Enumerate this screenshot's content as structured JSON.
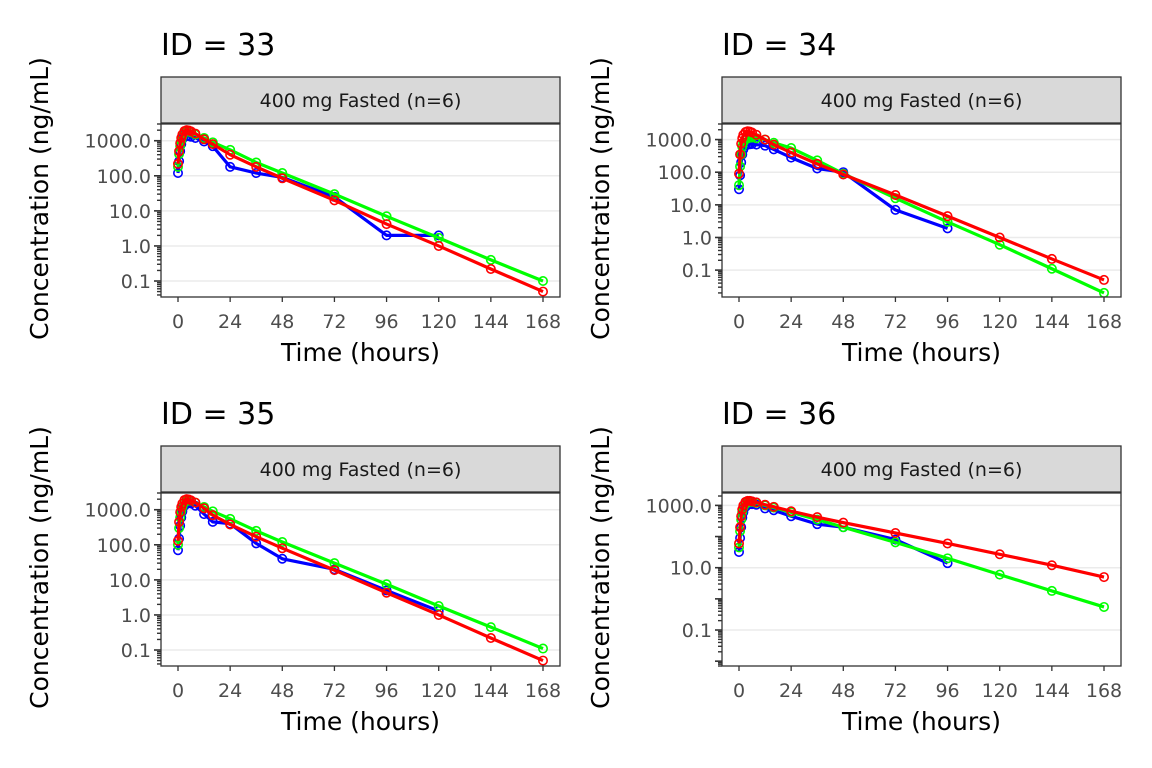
{
  "colors": {
    "obs": "#0000ff",
    "model_a": "#00ff00",
    "model_b": "#ff0000",
    "strip_fill": "#d9d9d9",
    "grid": "#ebebeb"
  },
  "chart_data": [
    {
      "type": "line",
      "title": "ID = 33",
      "strip": "400 mg Fasted (n=6)",
      "xlabel": "Time (hours)",
      "ylabel": "Concentration (ng/mL)",
      "xlim": [
        0,
        168
      ],
      "x_ticks": [
        0,
        24,
        48,
        72,
        96,
        120,
        144,
        168
      ],
      "y_scale": "log10",
      "ylim": [
        0.035,
        3000
      ],
      "y_ticks": [
        0.1,
        1,
        10,
        100,
        1000
      ],
      "y_tick_labels": [
        "0.1",
        "1.0",
        "10.0",
        "100.0",
        "1000.0"
      ],
      "grid": true,
      "series": [
        {
          "color_key": "obs",
          "x": [
            0,
            0.5,
            1,
            1.5,
            2,
            3,
            4,
            5,
            6,
            8,
            12,
            16,
            24,
            36,
            48,
            72,
            96,
            120
          ],
          "y": [
            120,
            260,
            500,
            800,
            1100,
            1500,
            1400,
            1350,
            1300,
            1200,
            950,
            700,
            180,
            120,
            90,
            25,
            2,
            2
          ]
        },
        {
          "color_key": "model_a",
          "x": [
            0,
            0.5,
            1,
            1.5,
            2,
            3,
            4,
            5,
            6,
            8,
            12,
            16,
            24,
            36,
            48,
            72,
            96,
            120,
            144,
            168
          ],
          "y": [
            180,
            420,
            700,
            1000,
            1300,
            1700,
            1900,
            1850,
            1750,
            1500,
            1200,
            900,
            550,
            240,
            120,
            30,
            7,
            1.7,
            0.4,
            0.1
          ]
        },
        {
          "color_key": "model_b",
          "x": [
            0,
            0.5,
            1,
            1.5,
            2,
            3,
            4,
            5,
            6,
            8,
            12,
            16,
            24,
            36,
            48,
            72,
            96,
            120,
            144,
            168
          ],
          "y": [
            220,
            500,
            850,
            1200,
            1500,
            1900,
            2000,
            1950,
            1850,
            1600,
            1100,
            800,
            400,
            180,
            85,
            20,
            4.2,
            1,
            0.22,
            0.05
          ]
        }
      ]
    },
    {
      "type": "line",
      "title": "ID = 34",
      "strip": "400 mg Fasted (n=6)",
      "xlabel": "Time (hours)",
      "ylabel": "Concentration (ng/mL)",
      "xlim": [
        0,
        168
      ],
      "x_ticks": [
        0,
        24,
        48,
        72,
        96,
        120,
        144,
        168
      ],
      "y_scale": "log10",
      "ylim": [
        0.015,
        3000
      ],
      "y_ticks": [
        0.1,
        1,
        10,
        100,
        1000
      ],
      "y_tick_labels": [
        "0.1",
        "1.0",
        "10.0",
        "100.0",
        "1000.0"
      ],
      "grid": true,
      "series": [
        {
          "color_key": "obs",
          "x": [
            0,
            0.5,
            1,
            1.5,
            2,
            3,
            4,
            5,
            6,
            8,
            12,
            16,
            24,
            36,
            48,
            72,
            96
          ],
          "y": [
            30,
            80,
            200,
            350,
            500,
            650,
            700,
            720,
            730,
            700,
            650,
            500,
            280,
            130,
            100,
            7,
            1.9
          ]
        },
        {
          "color_key": "model_a",
          "x": [
            0,
            0.5,
            1,
            1.5,
            2,
            3,
            4,
            5,
            6,
            8,
            12,
            16,
            24,
            36,
            48,
            72,
            96,
            120,
            144,
            168
          ],
          "y": [
            40,
            150,
            350,
            600,
            800,
            1000,
            1100,
            1150,
            1150,
            1100,
            1000,
            800,
            550,
            230,
            90,
            16,
            3,
            0.6,
            0.11,
            0.02
          ]
        },
        {
          "color_key": "model_b",
          "x": [
            0,
            0.5,
            1,
            1.5,
            2,
            3,
            4,
            5,
            6,
            8,
            12,
            16,
            24,
            36,
            48,
            72,
            96,
            120,
            144,
            168
          ],
          "y": [
            90,
            350,
            750,
            1100,
            1400,
            1700,
            1800,
            1750,
            1650,
            1400,
            1000,
            700,
            400,
            180,
            85,
            20,
            4.5,
            1,
            0.22,
            0.05
          ]
        }
      ]
    },
    {
      "type": "line",
      "title": "ID = 35",
      "strip": "400 mg Fasted (n=6)",
      "xlabel": "Time (hours)",
      "ylabel": "Concentration (ng/mL)",
      "xlim": [
        0,
        168
      ],
      "x_ticks": [
        0,
        24,
        48,
        72,
        96,
        120,
        144,
        168
      ],
      "y_scale": "log10",
      "ylim": [
        0.035,
        3000
      ],
      "y_ticks": [
        0.1,
        1,
        10,
        100,
        1000
      ],
      "y_tick_labels": [
        "0.1",
        "1.0",
        "10.0",
        "100.0",
        "1000.0"
      ],
      "grid": true,
      "series": [
        {
          "color_key": "obs",
          "x": [
            0,
            0.5,
            1,
            1.5,
            2,
            3,
            4,
            5,
            6,
            8,
            12,
            16,
            24,
            36,
            48,
            72,
            96,
            120
          ],
          "y": [
            70,
            150,
            350,
            600,
            900,
            1300,
            1500,
            1550,
            1500,
            1300,
            750,
            450,
            400,
            110,
            40,
            20,
            5,
            1.3
          ]
        },
        {
          "color_key": "model_a",
          "x": [
            0,
            0.5,
            1,
            1.5,
            2,
            3,
            4,
            5,
            6,
            8,
            12,
            16,
            24,
            36,
            48,
            72,
            96,
            120,
            144,
            168
          ],
          "y": [
            100,
            300,
            600,
            900,
            1200,
            1600,
            1800,
            1850,
            1800,
            1600,
            1200,
            900,
            550,
            250,
            120,
            30,
            7.5,
            1.8,
            0.45,
            0.11
          ]
        },
        {
          "color_key": "model_b",
          "x": [
            0,
            0.5,
            1,
            1.5,
            2,
            3,
            4,
            5,
            6,
            8,
            12,
            16,
            24,
            36,
            48,
            72,
            96,
            120,
            144,
            168
          ],
          "y": [
            130,
            450,
            850,
            1200,
            1500,
            1900,
            2000,
            1950,
            1850,
            1600,
            1100,
            700,
            380,
            170,
            80,
            19,
            4.3,
            1,
            0.22,
            0.05
          ]
        }
      ]
    },
    {
      "type": "line",
      "title": "ID = 36",
      "strip": "400 mg Fasted (n=6)",
      "xlabel": "Time (hours)",
      "ylabel": "Concentration (ng/mL)",
      "xlim": [
        0,
        168
      ],
      "x_ticks": [
        0,
        24,
        48,
        72,
        96,
        120,
        144,
        168
      ],
      "y_scale": "log10",
      "ylim": [
        0.007,
        2500
      ],
      "y_ticks": [
        0.1,
        10,
        1000
      ],
      "y_tick_labels": [
        "0.1",
        "10.0",
        "1000.0"
      ],
      "grid": true,
      "series": [
        {
          "color_key": "obs",
          "x": [
            0,
            0.5,
            1,
            1.5,
            2,
            3,
            4,
            5,
            6,
            8,
            12,
            16,
            24,
            36,
            48,
            72,
            96
          ],
          "y": [
            32,
            90,
            200,
            400,
            600,
            900,
            1050,
            1100,
            1100,
            1050,
            800,
            700,
            450,
            250,
            200,
            80,
            14
          ]
        },
        {
          "color_key": "model_a",
          "x": [
            0,
            0.5,
            1,
            1.5,
            2,
            3,
            4,
            5,
            6,
            8,
            12,
            16,
            24,
            36,
            48,
            72,
            96,
            120,
            144,
            168
          ],
          "y": [
            45,
            150,
            350,
            600,
            850,
            1100,
            1250,
            1300,
            1300,
            1200,
            1000,
            850,
            600,
            350,
            200,
            65,
            20,
            6,
            1.8,
            0.55
          ]
        },
        {
          "color_key": "model_b",
          "x": [
            0,
            0.5,
            1,
            1.5,
            2,
            3,
            4,
            5,
            6,
            8,
            12,
            16,
            24,
            36,
            48,
            72,
            96,
            120,
            144,
            168
          ],
          "y": [
            60,
            200,
            450,
            750,
            1000,
            1300,
            1400,
            1400,
            1350,
            1250,
            1050,
            900,
            650,
            420,
            280,
            130,
            60,
            27,
            12,
            5
          ]
        }
      ]
    }
  ]
}
